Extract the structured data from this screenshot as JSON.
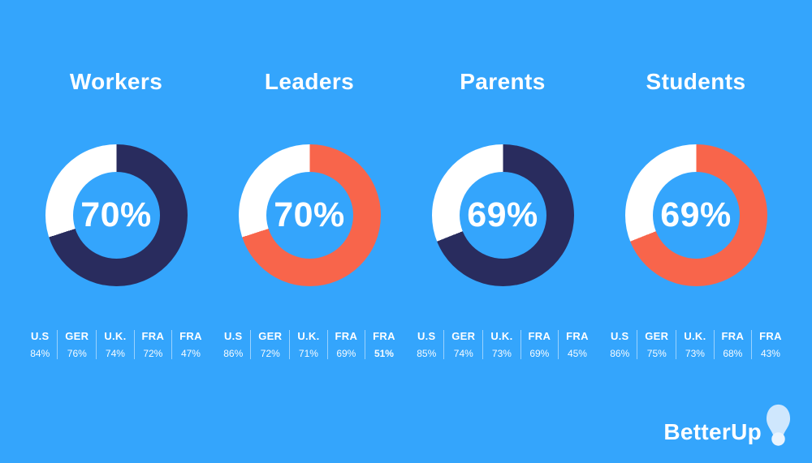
{
  "page": {
    "background_color": "#34A5FC",
    "text_color": "#FFFFFF",
    "divider_color": "rgba(255,255,255,0.5)"
  },
  "brand": {
    "logo_text": "BetterUp",
    "logo_icon": "lightbulb-icon",
    "bulb_body_color": "#CFE7FD",
    "bulb_base_color": "#EAF4FE"
  },
  "chart_data": [
    {
      "type": "pie",
      "subtype": "donut",
      "title": "Workers",
      "percent": 70,
      "center_label": "70%",
      "ring_color": "#292C5E",
      "remainder_color": "#FFFFFF",
      "start_angle": "12-o'clock, clockwise",
      "legend_position": "below",
      "breakdown": {
        "categories": [
          "U.S",
          "GER",
          "U.K.",
          "FRA",
          "FRA"
        ],
        "values": [
          84,
          76,
          74,
          72,
          47
        ],
        "value_suffix": "%",
        "emphasis_index": null
      }
    },
    {
      "type": "pie",
      "subtype": "donut",
      "title": "Leaders",
      "percent": 70,
      "center_label": "70%",
      "ring_color": "#F8654B",
      "remainder_color": "#FFFFFF",
      "start_angle": "12-o'clock, clockwise",
      "legend_position": "below",
      "breakdown": {
        "categories": [
          "U.S",
          "GER",
          "U.K.",
          "FRA",
          "FRA"
        ],
        "values": [
          86,
          72,
          71,
          69,
          51
        ],
        "value_suffix": "%",
        "emphasis_index": 4
      }
    },
    {
      "type": "pie",
      "subtype": "donut",
      "title": "Parents",
      "percent": 69,
      "center_label": "69%",
      "ring_color": "#292C5E",
      "remainder_color": "#FFFFFF",
      "start_angle": "12-o'clock, clockwise",
      "legend_position": "below",
      "breakdown": {
        "categories": [
          "U.S",
          "GER",
          "U.K.",
          "FRA",
          "FRA"
        ],
        "values": [
          85,
          74,
          73,
          69,
          45
        ],
        "value_suffix": "%",
        "emphasis_index": null
      }
    },
    {
      "type": "pie",
      "subtype": "donut",
      "title": "Students",
      "percent": 69,
      "center_label": "69%",
      "ring_color": "#F8654B",
      "remainder_color": "#FFFFFF",
      "start_angle": "12-o'clock, clockwise",
      "legend_position": "below",
      "breakdown": {
        "categories": [
          "U.S",
          "GER",
          "U.K.",
          "FRA",
          "FRA"
        ],
        "values": [
          86,
          75,
          73,
          68,
          43
        ],
        "value_suffix": "%",
        "emphasis_index": null
      }
    }
  ]
}
